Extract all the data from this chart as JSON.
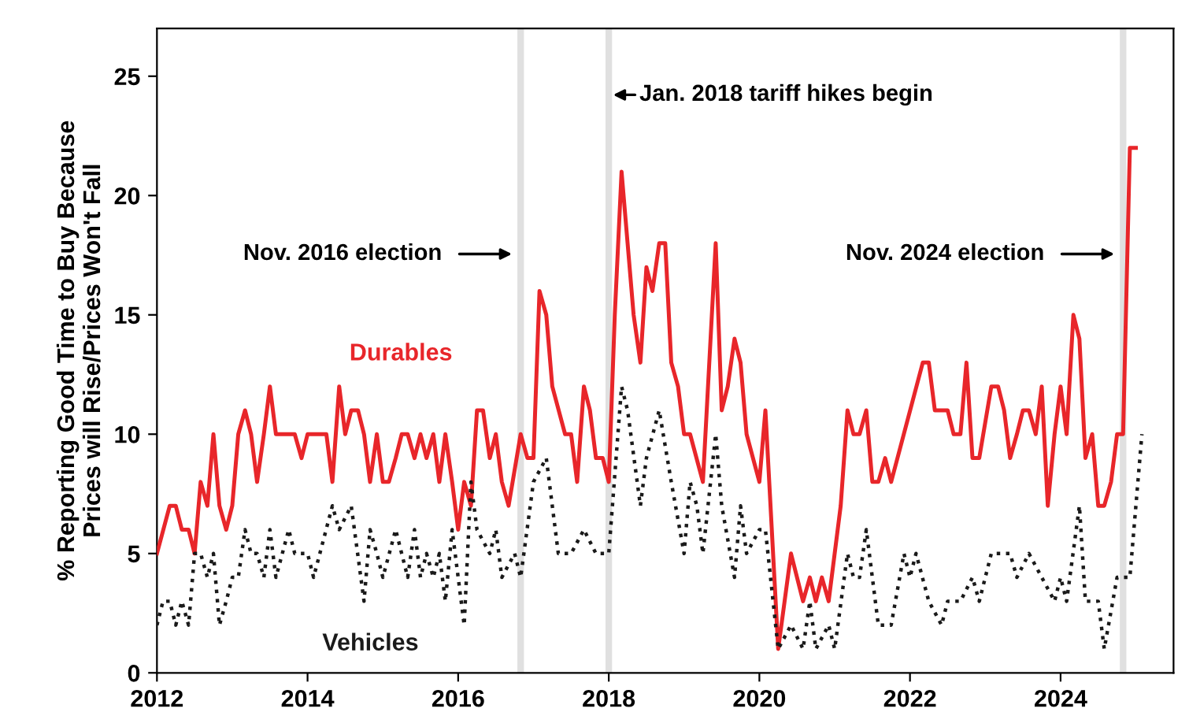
{
  "chart_data": {
    "type": "line",
    "ylabel": "% Reporting Good Time to Buy Because\nPrices will Rise/Prices Won't Fall",
    "xlim": [
      2012,
      2025.5
    ],
    "xticks": [
      2012,
      2014,
      2016,
      2018,
      2020,
      2022,
      2024
    ],
    "ylim": [
      0,
      27
    ],
    "yticks": [
      0,
      5,
      10,
      15,
      20,
      25
    ],
    "grid": false,
    "legend": false,
    "series": [
      {
        "name": "Durables",
        "color": "#e8262a",
        "line_style": "solid",
        "x": [
          2012.0,
          2012.17,
          2012.25,
          2012.33,
          2012.42,
          2012.5,
          2012.58,
          2012.67,
          2012.75,
          2012.83,
          2012.92,
          2013.0,
          2013.08,
          2013.17,
          2013.25,
          2013.33,
          2013.42,
          2013.5,
          2013.58,
          2013.83,
          2013.92,
          2014.0,
          2014.25,
          2014.33,
          2014.42,
          2014.5,
          2014.58,
          2014.67,
          2014.75,
          2014.83,
          2014.92,
          2015.0,
          2015.08,
          2015.17,
          2015.25,
          2015.33,
          2015.42,
          2015.5,
          2015.58,
          2015.67,
          2015.75,
          2015.83,
          2015.92,
          2016.0,
          2016.08,
          2016.17,
          2016.25,
          2016.33,
          2016.42,
          2016.5,
          2016.58,
          2016.67,
          2016.83,
          2016.92,
          2017.0,
          2017.08,
          2017.17,
          2017.25,
          2017.42,
          2017.5,
          2017.58,
          2017.67,
          2017.75,
          2017.83,
          2017.92,
          2018.0,
          2018.08,
          2018.17,
          2018.25,
          2018.33,
          2018.42,
          2018.5,
          2018.58,
          2018.67,
          2018.75,
          2018.83,
          2018.92,
          2019.0,
          2019.08,
          2019.25,
          2019.42,
          2019.5,
          2019.58,
          2019.67,
          2019.75,
          2019.83,
          2020.0,
          2020.08,
          2020.25,
          2020.42,
          2020.58,
          2020.67,
          2020.75,
          2020.83,
          2020.92,
          2021.08,
          2021.17,
          2021.25,
          2021.33,
          2021.42,
          2021.5,
          2021.58,
          2021.67,
          2021.75,
          2022.17,
          2022.25,
          2022.33,
          2022.5,
          2022.58,
          2022.67,
          2022.75,
          2022.83,
          2022.92,
          2023.08,
          2023.17,
          2023.25,
          2023.33,
          2023.42,
          2023.5,
          2023.58,
          2023.67,
          2023.75,
          2023.83,
          2023.92,
          2024.0,
          2024.08,
          2024.17,
          2024.25,
          2024.33,
          2024.42,
          2024.5,
          2024.58,
          2024.67,
          2024.75,
          2024.83,
          2024.92,
          2025.0
        ],
        "values": [
          5,
          7,
          7,
          6,
          6,
          5,
          8,
          7,
          10,
          7,
          6,
          7,
          10,
          11,
          10,
          8,
          10,
          12,
          10,
          10,
          9,
          10,
          10,
          8,
          12,
          10,
          11,
          11,
          10,
          8,
          10,
          8,
          8,
          9,
          10,
          10,
          9,
          10,
          9,
          10,
          8,
          10,
          8,
          6,
          8,
          7,
          11,
          11,
          9,
          10,
          8,
          7,
          10,
          9,
          9,
          16,
          15,
          12,
          10,
          10,
          8,
          12,
          11,
          9,
          9,
          8,
          15,
          21,
          18,
          15,
          13,
          17,
          16,
          18,
          18,
          13,
          12,
          10,
          10,
          8,
          18,
          11,
          12,
          14,
          13,
          10,
          8,
          11,
          1,
          5,
          3,
          4,
          3,
          4,
          3,
          7,
          11,
          10,
          10,
          11,
          8,
          8,
          9,
          8,
          13,
          13,
          11,
          11,
          10,
          10,
          13,
          9,
          9,
          12,
          12,
          11,
          9,
          10,
          11,
          11,
          10,
          12,
          7,
          10,
          12,
          10,
          15,
          14,
          9,
          10,
          7,
          7,
          8,
          10,
          10,
          22,
          22
        ]
      },
      {
        "name": "Vehicles",
        "color": "#1a1a1a",
        "line_style": "dotted",
        "x": [
          2012.0,
          2012.08,
          2012.17,
          2012.25,
          2012.33,
          2012.42,
          2012.5,
          2012.58,
          2012.67,
          2012.75,
          2012.83,
          2012.92,
          2013.0,
          2013.08,
          2013.17,
          2013.25,
          2013.33,
          2013.42,
          2013.5,
          2013.58,
          2013.75,
          2013.83,
          2014.0,
          2014.08,
          2014.33,
          2014.42,
          2014.58,
          2014.75,
          2014.83,
          2014.92,
          2015.0,
          2015.17,
          2015.33,
          2015.42,
          2015.5,
          2015.58,
          2015.67,
          2015.75,
          2015.83,
          2015.92,
          2016.08,
          2016.17,
          2016.25,
          2016.42,
          2016.5,
          2016.58,
          2016.75,
          2016.83,
          2017.0,
          2017.17,
          2017.33,
          2017.5,
          2017.67,
          2017.83,
          2018.0,
          2018.17,
          2018.25,
          2018.42,
          2018.5,
          2018.67,
          2018.83,
          2019.0,
          2019.08,
          2019.17,
          2019.25,
          2019.42,
          2019.5,
          2019.67,
          2019.75,
          2019.83,
          2020.0,
          2020.08,
          2020.25,
          2020.42,
          2020.58,
          2020.67,
          2020.75,
          2020.92,
          2021.0,
          2021.17,
          2021.25,
          2021.33,
          2021.42,
          2021.58,
          2021.75,
          2021.92,
          2022.0,
          2022.08,
          2022.25,
          2022.42,
          2022.5,
          2022.67,
          2022.83,
          2022.92,
          2023.08,
          2023.33,
          2023.42,
          2023.58,
          2023.75,
          2023.92,
          2024.0,
          2024.08,
          2024.25,
          2024.33,
          2024.5,
          2024.58,
          2024.75,
          2024.92,
          2025.08
        ],
        "values": [
          2,
          3,
          3,
          2,
          3,
          2,
          5,
          5,
          4,
          5,
          2,
          3,
          4,
          4,
          6,
          5,
          5,
          4,
          6,
          4,
          6,
          5,
          5,
          4,
          7,
          6,
          7,
          3,
          6,
          5,
          4,
          6,
          4,
          6,
          4,
          5,
          4,
          5,
          3,
          6,
          2,
          8,
          6,
          5,
          6,
          4,
          5,
          4,
          8,
          9,
          5,
          5,
          6,
          5,
          5,
          12,
          11,
          7,
          9,
          11,
          8,
          5,
          8,
          7,
          5,
          10,
          7,
          4,
          7,
          5,
          6,
          6,
          1,
          2,
          1,
          3,
          1,
          2,
          1,
          5,
          4,
          4,
          6,
          2,
          2,
          5,
          4,
          5,
          3,
          2,
          3,
          3,
          4,
          3,
          5,
          5,
          4,
          5,
          4,
          3,
          4,
          3,
          7,
          3,
          3,
          1,
          4,
          4,
          10
        ]
      }
    ],
    "ref_lines": [
      {
        "axis": "x",
        "value": 2016.83,
        "color": "#e0e0e0"
      },
      {
        "axis": "x",
        "value": 2018.0,
        "color": "#e0e0e0"
      },
      {
        "axis": "x",
        "value": 2024.83,
        "color": "#e0e0e0"
      }
    ],
    "annotations": [
      "Nov. 2016 election",
      "Jan. 2018 tariff hikes begin",
      "Nov. 2024 election"
    ]
  }
}
